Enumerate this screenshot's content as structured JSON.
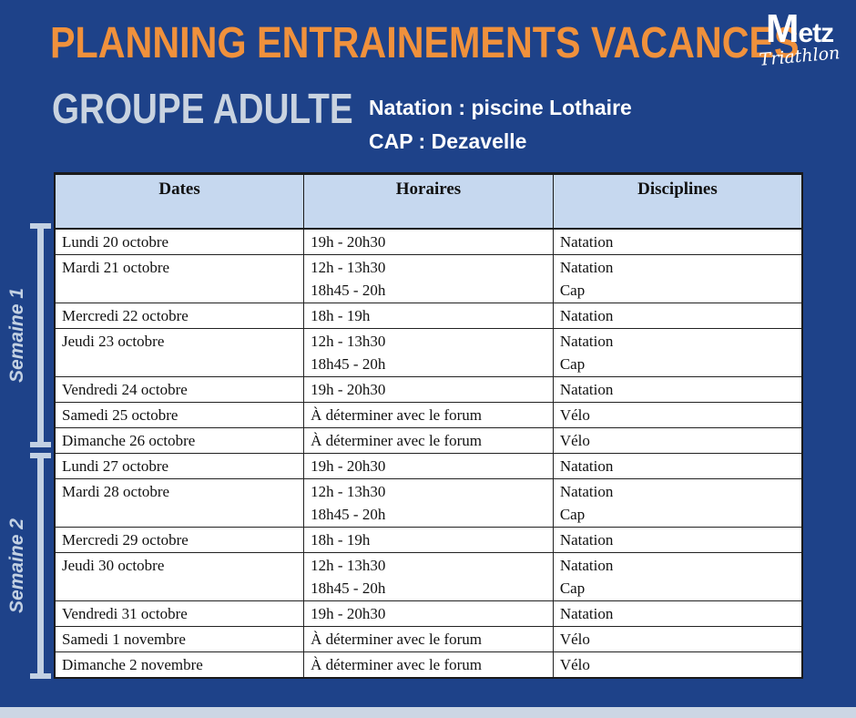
{
  "header": {
    "title": "PLANNING ENTRAINEMENTS VACANCES",
    "group": "GROUPE ADULTE",
    "info_line1": "Natation : piscine Lothaire",
    "info_line2": "CAP : Dezavelle",
    "logo": {
      "main": "Metz",
      "sub": "Triathlon"
    }
  },
  "colors": {
    "background": "#1e4289",
    "title_orange": "#f0913c",
    "group_gray": "#c9d3e0",
    "table_header_bg": "#c6d8ef",
    "bracket_light_blue": "#c3d1e3",
    "bottom_strip": "#ccd6e4",
    "table_text": "#111111",
    "white": "#ffffff"
  },
  "table": {
    "headers": [
      "Dates",
      "Horaires",
      "Disciplines"
    ],
    "weeks": [
      {
        "label": "Semaine 1",
        "rows": [
          {
            "date": "Lundi 20 octobre",
            "horaires": "19h - 20h30",
            "disciplines": "Natation"
          },
          {
            "date": "Mardi 21 octobre",
            "horaires": "12h - 13h30\n18h45 - 20h",
            "disciplines": "Natation\nCap"
          },
          {
            "date": "Mercredi 22 octobre",
            "horaires": "18h - 19h",
            "disciplines": "Natation"
          },
          {
            "date": "Jeudi 23 octobre",
            "horaires": "12h - 13h30\n18h45 - 20h",
            "disciplines": "Natation\nCap"
          },
          {
            "date": "Vendredi 24 octobre",
            "horaires": "19h - 20h30",
            "disciplines": "Natation"
          },
          {
            "date": "Samedi 25 octobre",
            "horaires": "À déterminer avec le forum",
            "disciplines": "Vélo"
          },
          {
            "date": "Dimanche 26 octobre",
            "horaires": "À déterminer avec le forum",
            "disciplines": "Vélo"
          }
        ]
      },
      {
        "label": "Semaine 2",
        "rows": [
          {
            "date": "Lundi 27 octobre",
            "horaires": "19h - 20h30",
            "disciplines": "Natation"
          },
          {
            "date": "Mardi 28 octobre",
            "horaires": "12h - 13h30\n18h45 - 20h",
            "disciplines": "Natation\nCap"
          },
          {
            "date": "Mercredi 29 octobre",
            "horaires": "18h - 19h",
            "disciplines": "Natation"
          },
          {
            "date": "Jeudi 30 octobre",
            "horaires": "12h - 13h30\n18h45 - 20h",
            "disciplines": "Natation\nCap"
          },
          {
            "date": "Vendredi 31 octobre",
            "horaires": "19h - 20h30",
            "disciplines": "Natation"
          },
          {
            "date": "Samedi 1 novembre",
            "horaires": "À déterminer avec le forum",
            "disciplines": "Vélo"
          },
          {
            "date": "Dimanche 2 novembre",
            "horaires": "À déterminer avec le forum",
            "disciplines": "Vélo"
          }
        ]
      }
    ]
  }
}
